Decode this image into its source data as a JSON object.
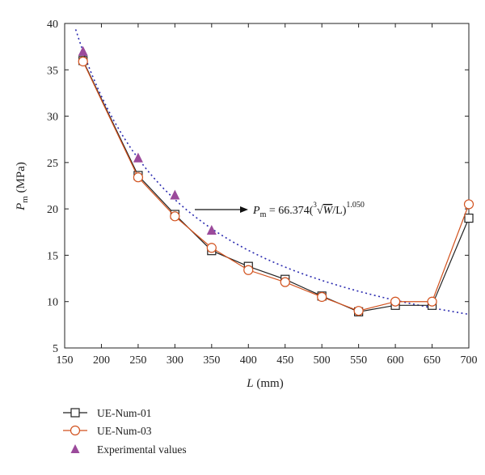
{
  "chart_data": {
    "type": "line",
    "xlabel": {
      "symbol": "L",
      "unit": " (mm)"
    },
    "ylabel": {
      "symbol": "P",
      "subscript": "m",
      "unit": " (MPa)"
    },
    "xlim": [
      150,
      700
    ],
    "ylim": [
      5,
      40
    ],
    "xticks": [
      150,
      200,
      250,
      300,
      350,
      400,
      450,
      500,
      550,
      600,
      650,
      700
    ],
    "yticks": [
      5,
      10,
      15,
      20,
      25,
      30,
      35,
      40
    ],
    "grid": false,
    "legend_position": "bottom-left, below plot",
    "series": [
      {
        "name": "UE-Num-01",
        "marker": "square",
        "color": "#222222",
        "x": [
          175,
          250,
          300,
          350,
          400,
          450,
          500,
          550,
          600,
          650,
          700
        ],
        "y": [
          36.0,
          23.6,
          19.4,
          15.5,
          13.8,
          12.4,
          10.6,
          8.9,
          9.6,
          9.6,
          19.0
        ]
      },
      {
        "name": "UE-Num-03",
        "marker": "circle",
        "color": "#d2521e",
        "x": [
          175,
          250,
          300,
          350,
          400,
          450,
          500,
          550,
          600,
          650,
          700
        ],
        "y": [
          35.9,
          23.4,
          19.2,
          15.8,
          13.4,
          12.1,
          10.5,
          9.0,
          10.0,
          10.0,
          20.5
        ]
      },
      {
        "name": "Experimental values",
        "marker": "triangle",
        "color": "#9b4a9b",
        "x": [
          175,
          250,
          300,
          350
        ],
        "y": [
          37.0,
          25.5,
          21.5,
          17.7
        ]
      }
    ],
    "fit_curve": {
      "style": "dotted",
      "color": "#2b2bb0",
      "coefficient": 66.374,
      "exponent": 1.05,
      "x_start": 165,
      "x_end": 700
    },
    "annotation": {
      "lhs_symbol": "P",
      "lhs_subscript": "m",
      "equals_coef": " = 66.374(",
      "root_index": "3",
      "radicand": "W",
      "tail": "/L)",
      "exponent": "1.050"
    }
  }
}
